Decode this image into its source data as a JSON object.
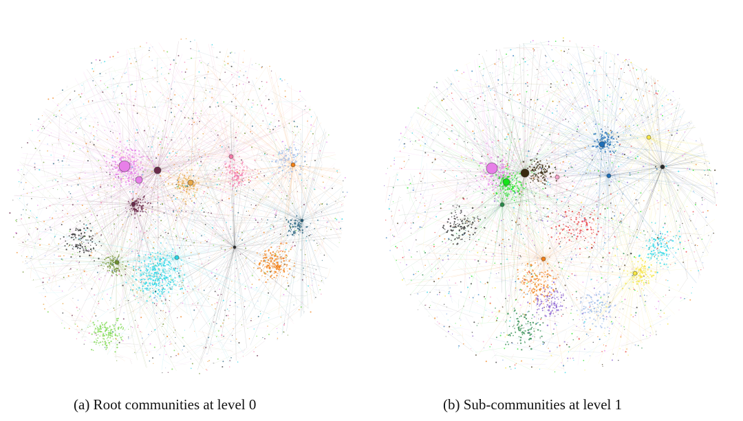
{
  "figure": {
    "panels": [
      {
        "id": "a",
        "caption": "(a) Root communities at level 0",
        "community_colors": [
          "#e77fe8",
          "#27d5e6",
          "#f07f16",
          "#7ad84b",
          "#f57aa9",
          "#e8a848",
          "#9ab8e8",
          "#6e8f2e",
          "#1f5c7a",
          "#6a2a4a",
          "#2a2a2a",
          "#b0b0b0"
        ]
      },
      {
        "id": "b",
        "caption": "(b) Sub-communities at level 1",
        "community_colors": [
          "#e77fe8",
          "#15e31a",
          "#3a2a10",
          "#27d5e6",
          "#f07f16",
          "#1f6fb8",
          "#f5e642",
          "#e8383a",
          "#9ab8e8",
          "#8a5fd0",
          "#2a8a4a",
          "#f5a0c8",
          "#2a2a2a",
          "#b0b0b0"
        ]
      }
    ]
  }
}
